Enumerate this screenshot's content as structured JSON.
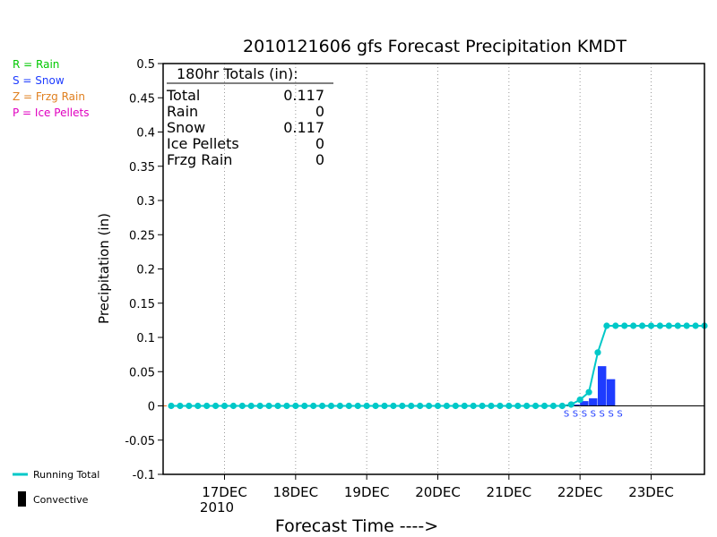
{
  "chart_data": {
    "type": "bar",
    "title": "2010121606 gfs Forecast Precipitation KMDT",
    "xlabel": "Forecast Time ---->",
    "ylabel": "Precipitation (in)",
    "ylim": [
      -0.1,
      0.5
    ],
    "yticks": [
      "0.5",
      "0.45",
      "0.4",
      "0.35",
      "0.3",
      "0.25",
      "0.2",
      "0.15",
      "0.1",
      "0.05",
      "0",
      "-0.05",
      "-0.1"
    ],
    "xlim_hours": [
      0,
      180
    ],
    "xticks": [
      {
        "label": "17DEC",
        "hour": 18
      },
      {
        "label": "18DEC",
        "hour": 42
      },
      {
        "label": "19DEC",
        "hour": 66
      },
      {
        "label": "20DEC",
        "hour": 90
      },
      {
        "label": "21DEC",
        "hour": 114
      },
      {
        "label": "22DEC",
        "hour": 138
      },
      {
        "label": "23DEC",
        "hour": 162
      }
    ],
    "year_label": "2010",
    "vgrid_hours": [
      18,
      42,
      66,
      90,
      114,
      138,
      162
    ],
    "grid": "vertical dotted",
    "running_total": {
      "name": "Running Total",
      "color": "#00c8c8",
      "hours": [
        0,
        3,
        6,
        9,
        12,
        15,
        18,
        21,
        24,
        27,
        30,
        33,
        36,
        39,
        42,
        45,
        48,
        51,
        54,
        57,
        60,
        63,
        66,
        69,
        72,
        75,
        78,
        81,
        84,
        87,
        90,
        93,
        96,
        99,
        102,
        105,
        108,
        111,
        114,
        117,
        120,
        123,
        126,
        129,
        132,
        135,
        138,
        141,
        144,
        147,
        150,
        153,
        156,
        159,
        162,
        165,
        168,
        171,
        174,
        177,
        180
      ],
      "values": [
        0,
        0,
        0,
        0,
        0,
        0,
        0,
        0,
        0,
        0,
        0,
        0,
        0,
        0,
        0,
        0,
        0,
        0,
        0,
        0,
        0,
        0,
        0,
        0,
        0,
        0,
        0,
        0,
        0,
        0,
        0,
        0,
        0,
        0,
        0,
        0,
        0,
        0,
        0,
        0,
        0,
        0,
        0,
        0,
        0,
        0.002,
        0.009,
        0.02,
        0.078,
        0.117,
        0.117,
        0.117,
        0.117,
        0.117,
        0.117,
        0.117,
        0.117,
        0.117,
        0.117,
        0.117,
        0.117
      ]
    },
    "precip_bars": {
      "color": "#1e3cff",
      "hours": [
        135,
        138,
        141,
        144,
        147
      ],
      "values": [
        0.002,
        0.007,
        0.011,
        0.058,
        0.039
      ]
    },
    "type_markers": {
      "symbol": "S",
      "color": "#1e3cff",
      "hours": [
        132,
        135,
        138,
        141,
        144,
        147,
        150
      ]
    },
    "zero_line_color": "#e07020",
    "totals_box": {
      "heading": "180hr Totals (in):",
      "rows": [
        {
          "label": "Total",
          "value": "0.117"
        },
        {
          "label": "Rain",
          "value": "0"
        },
        {
          "label": "Snow",
          "value": "0.117"
        },
        {
          "label": "Ice Pellets",
          "value": "0"
        },
        {
          "label": "Frzg Rain",
          "value": "0"
        }
      ]
    },
    "type_legend": [
      {
        "text": "R = Rain",
        "color": "#00c800"
      },
      {
        "text": "S = Snow",
        "color": "#1e3cff"
      },
      {
        "text": "Z = Frzg Rain",
        "color": "#e08020"
      },
      {
        "text": "P = Ice Pellets",
        "color": "#e000c0"
      }
    ],
    "bottom_legend": [
      {
        "text": "Running Total",
        "color": "#00c8c8",
        "symbol": "line"
      },
      {
        "text": "Convective",
        "color": "#000000",
        "symbol": "bar"
      }
    ]
  }
}
